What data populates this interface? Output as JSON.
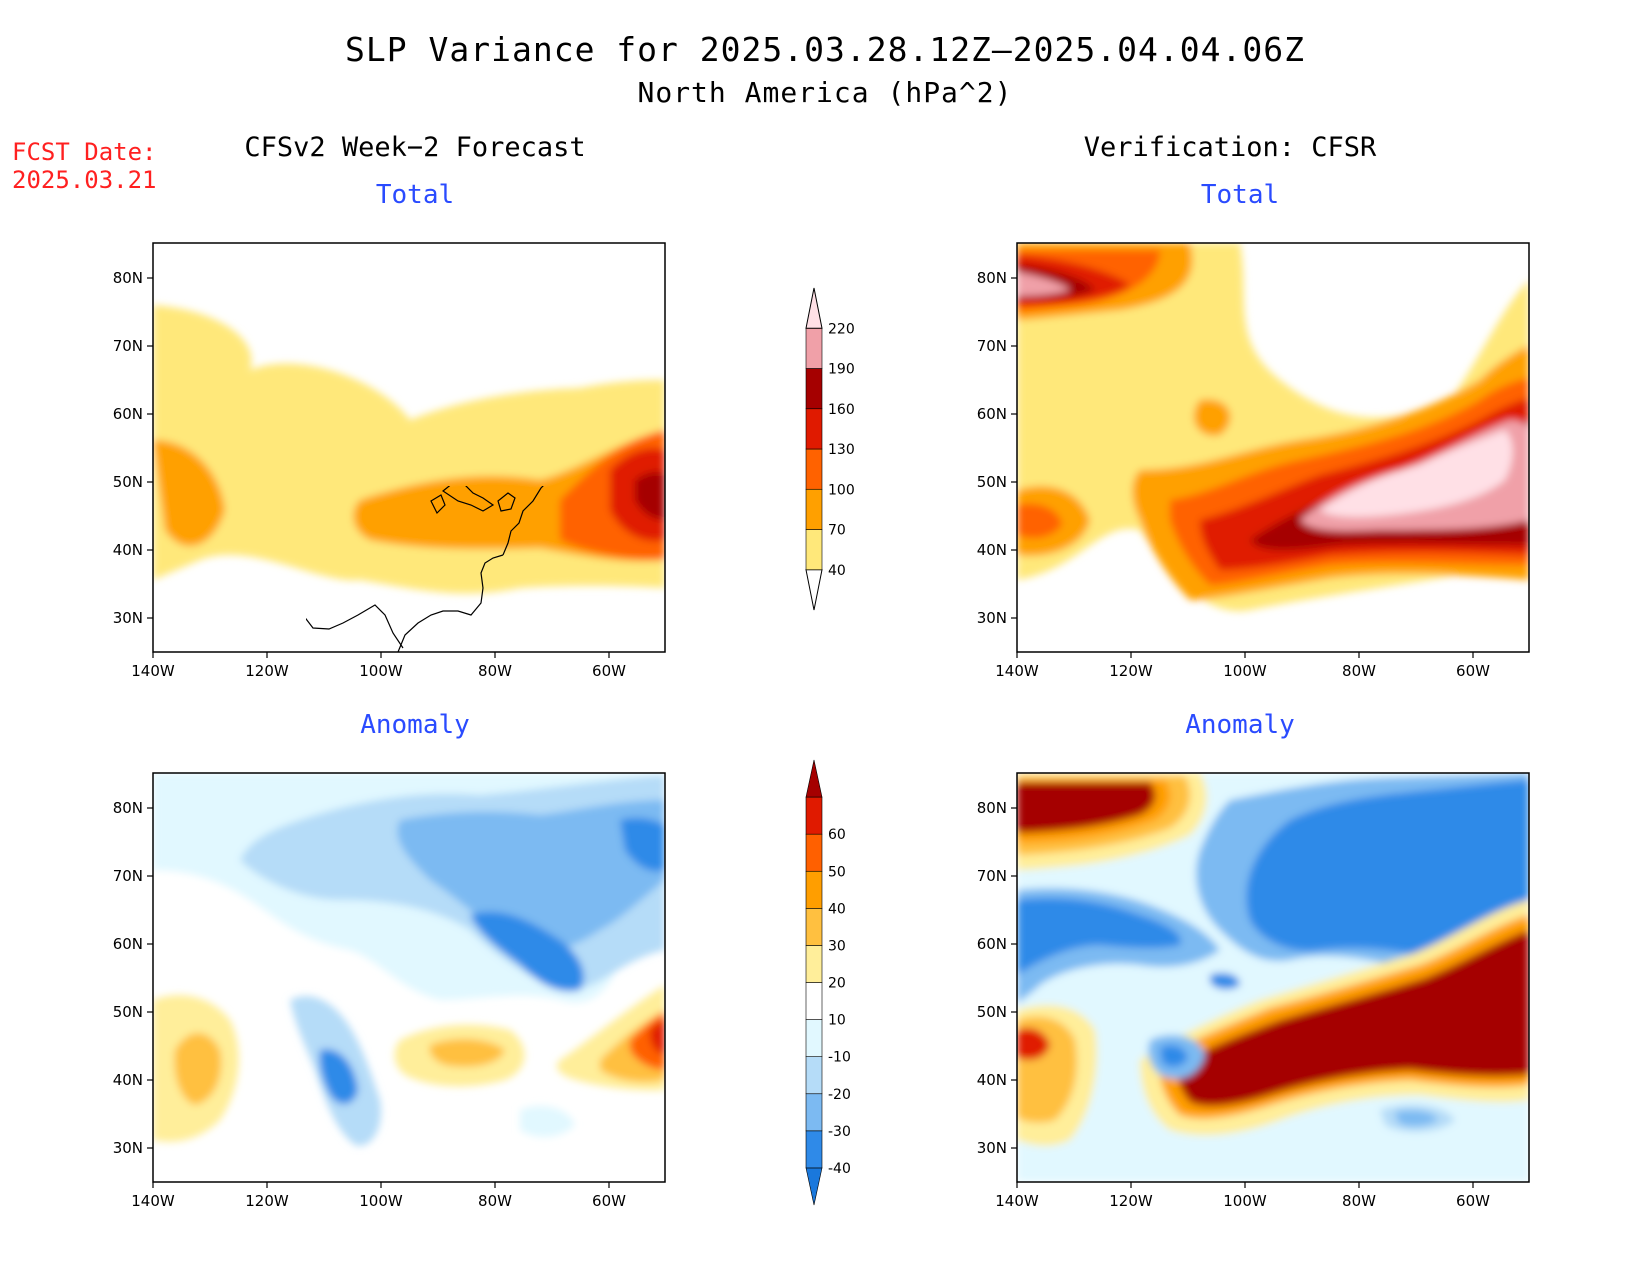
{
  "title": "SLP Variance for 2025.03.28.12Z–2025.04.04.06Z",
  "subtitle": "North America (hPa^2)",
  "fcst_date": {
    "label": "FCST Date:",
    "value": "2025.03.21"
  },
  "columns": {
    "left": "CFSv2 Week−2 Forecast",
    "right": "Verification: CFSR"
  },
  "panel_titles": {
    "total": "Total",
    "anomaly": "Anomaly"
  },
  "axes": {
    "lat_ticks": [
      "80N",
      "70N",
      "60N",
      "50N",
      "40N",
      "30N"
    ],
    "lon_ticks": [
      "140W",
      "120W",
      "100W",
      "80W",
      "60W"
    ]
  },
  "colorbars": {
    "total": {
      "levels": [
        "40",
        "70",
        "100",
        "130",
        "160",
        "190",
        "220"
      ],
      "colors": [
        "#ffe87a",
        "#ffa000",
        "#ff6200",
        "#e01a00",
        "#a50000",
        "#f0a0a8",
        "#ffe0e6"
      ]
    },
    "anomaly": {
      "levels": [
        "-40",
        "-30",
        "-20",
        "-10",
        "10",
        "20",
        "30",
        "40",
        "50",
        "60"
      ],
      "colors": [
        "#1a78dc",
        "#2f8ae8",
        "#7cbaf2",
        "#b5dcf8",
        "#e1f8ff",
        "#ffffff",
        "#ffee9a",
        "#ffc040",
        "#ff9e00",
        "#ff6000",
        "#e01a00",
        "#a50000"
      ]
    }
  }
}
